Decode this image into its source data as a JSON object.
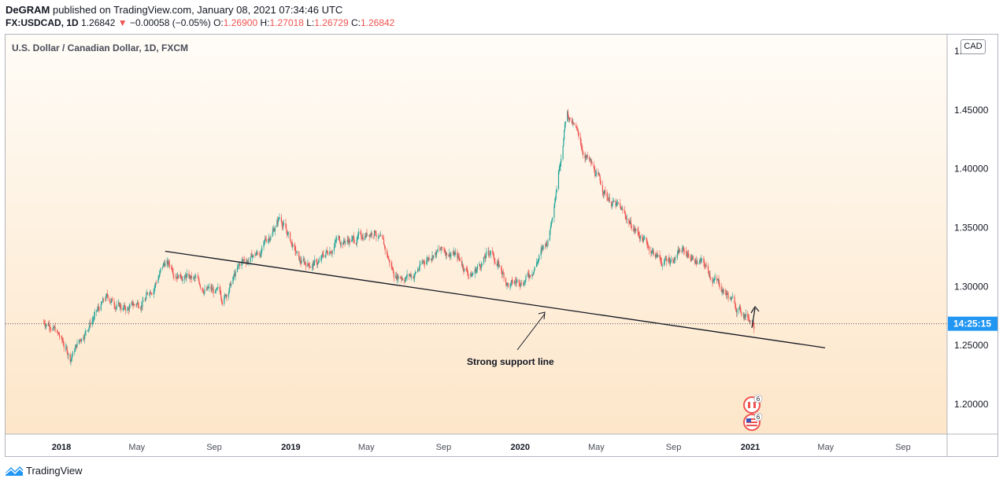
{
  "header": {
    "publisher": "DeGRAM",
    "published_text": "published on TradingView.com, January 08, 2021 07:34:46 UTC",
    "symbol": "FX:USDCAD, 1D",
    "last_price": "1.26842",
    "change": "−0.00058 (−0.05%)",
    "open_label": "O:",
    "open": "1.26900",
    "high_label": "H:",
    "high": "1.27018",
    "low_label": "L:",
    "low": "1.26729",
    "close_label": "C:",
    "close": "1.26842"
  },
  "chart_title": "U.S. Dollar / Canadian Dollar, 1D, FXCM",
  "currency_badge": "CAD",
  "countdown": "14:25:15",
  "annotation": "Strong support line",
  "event_badges": [
    "6",
    "6"
  ],
  "footer": {
    "brand": "TradingView"
  },
  "colors": {
    "up": "#26a69a",
    "down": "#ef5350",
    "accent": "#2196f3",
    "bg_top": "#fffaf3",
    "bg_bottom": "#fde7cb"
  },
  "chart_data": {
    "type": "line",
    "title": "U.S. Dollar / Canadian Dollar, 1D, FXCM",
    "series": [
      {
        "name": "",
        "x": [
          "2017-12",
          "2018-01",
          "2018-02",
          "2018-03",
          "2018-04",
          "2018-05",
          "2018-06",
          "2018-07",
          "2018-08",
          "2018-09",
          "2018-10",
          "2018-11",
          "2018-12",
          "2019-01",
          "2019-02",
          "2019-03",
          "2019-04",
          "2019-05",
          "2019-06",
          "2019-07",
          "2019-08",
          "2019-09",
          "2019-10",
          "2019-11",
          "2019-12",
          "2020-01",
          "2020-02",
          "2020-03",
          "2020-04",
          "2020-05",
          "2020-06",
          "2020-07",
          "2020-08",
          "2020-09",
          "2020-10",
          "2020-11",
          "2020-12",
          "2021-01"
        ],
        "values": [
          1.27,
          1.24,
          1.27,
          1.29,
          1.28,
          1.29,
          1.32,
          1.31,
          1.3,
          1.29,
          1.32,
          1.33,
          1.36,
          1.32,
          1.32,
          1.34,
          1.34,
          1.35,
          1.31,
          1.31,
          1.33,
          1.33,
          1.31,
          1.33,
          1.3,
          1.31,
          1.34,
          1.45,
          1.41,
          1.38,
          1.36,
          1.34,
          1.32,
          1.33,
          1.32,
          1.3,
          1.28,
          1.268
        ]
      }
    ],
    "support_line": {
      "x": [
        "2018-06-15",
        "2021-04-30"
      ],
      "y": [
        1.33,
        1.248
      ]
    },
    "ylim": [
      1.18,
      1.5
    ],
    "y_ticks": [
      "1.20000",
      "1.25000",
      "1.30000",
      "1.35000",
      "1.40000",
      "1.45000",
      "1.5"
    ],
    "x_ticks": [
      "2018",
      "May",
      "Sep",
      "2019",
      "May",
      "Sep",
      "2020",
      "May",
      "Sep",
      "2021",
      "May",
      "Sep"
    ],
    "current_price": 1.26842
  }
}
